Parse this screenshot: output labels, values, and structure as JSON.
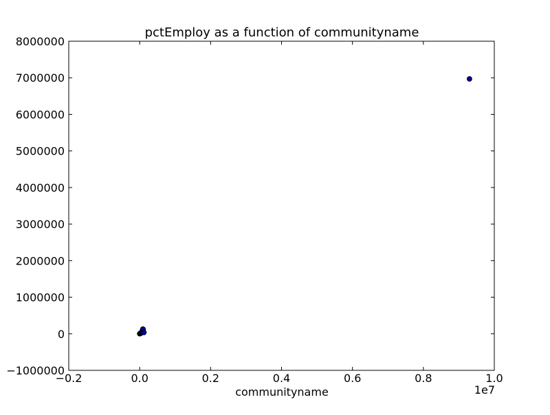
{
  "chart_data": {
    "type": "scatter",
    "title": "pctEmploy as a function of communityname",
    "xlabel": "communityname",
    "ylabel": "",
    "x_offset_label": "1e7",
    "xlim": [
      -0.2,
      1.0
    ],
    "ylim": [
      -1000000,
      8000000
    ],
    "x_ticks": [
      -0.2,
      0.0,
      0.2,
      0.4,
      0.6,
      0.8,
      1.0
    ],
    "x_tick_labels": [
      "−0.2",
      "0.0",
      "0.2",
      "0.4",
      "0.6",
      "0.8",
      "1.0"
    ],
    "y_ticks": [
      -1000000,
      0,
      1000000,
      2000000,
      3000000,
      4000000,
      5000000,
      6000000,
      7000000,
      8000000
    ],
    "y_tick_labels": [
      "−1000000",
      "0",
      "1000000",
      "2000000",
      "3000000",
      "4000000",
      "5000000",
      "6000000",
      "7000000",
      "8000000"
    ],
    "grid": false,
    "marker_color": "#0000aa",
    "series": [
      {
        "points": [
          {
            "x": 0.0,
            "y": 0
          },
          {
            "x": 0.001,
            "y": 5000
          },
          {
            "x": 0.002,
            "y": 10000
          },
          {
            "x": 0.003,
            "y": 15000
          },
          {
            "x": 0.002,
            "y": 20000
          },
          {
            "x": 0.004,
            "y": 30000
          },
          {
            "x": 0.005,
            "y": 25000
          },
          {
            "x": 0.006,
            "y": 40000
          },
          {
            "x": 0.008,
            "y": 50000
          },
          {
            "x": 0.01,
            "y": 60000
          },
          {
            "x": 0.008,
            "y": 100000
          },
          {
            "x": 0.009,
            "y": 130000
          },
          {
            "x": 0.01,
            "y": 120000
          },
          {
            "x": 0.011,
            "y": 45000
          },
          {
            "x": 0.012,
            "y": 35000
          },
          {
            "x": 0.93,
            "y": 6970000
          }
        ]
      }
    ]
  }
}
